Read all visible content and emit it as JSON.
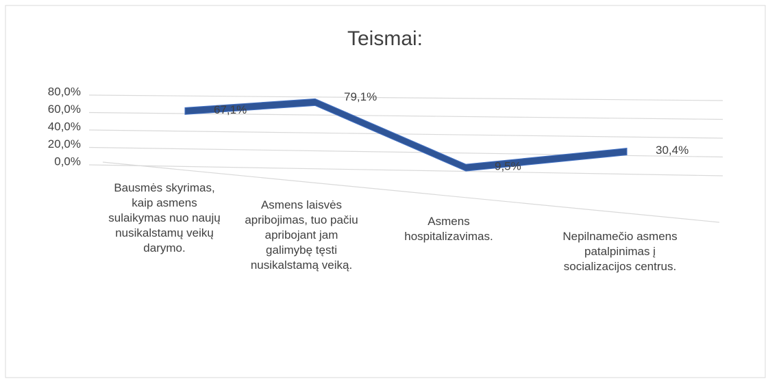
{
  "chart_data": {
    "type": "line3d",
    "title": "Teismai:",
    "categories": [
      "Bausmės skyrimas, kaip asmens sulaikymas nuo naujų nusikalstamų veikų darymo.",
      "Asmens laisvės apribojimas, tuo pačiu apribojant jam galimybę tęsti nusikalstamą veiką.",
      "Asmens hospitalizavimas.",
      "Nepilnamečio asmens patalpinimas į socializacijos centrus."
    ],
    "values": [
      67.1,
      79.1,
      9.5,
      30.4
    ],
    "value_labels": [
      "67,1%",
      "79,1%",
      "9,5%",
      "30,4%"
    ],
    "color": "#2f5597",
    "ylim": [
      0,
      80
    ],
    "yticks": [
      {
        "value": 0,
        "label": "0,0%"
      },
      {
        "value": 20,
        "label": "20,0%"
      },
      {
        "value": 40,
        "label": "40,0%"
      },
      {
        "value": 60,
        "label": "60,0%"
      },
      {
        "value": 80,
        "label": "80,0%"
      }
    ],
    "grid": true
  }
}
